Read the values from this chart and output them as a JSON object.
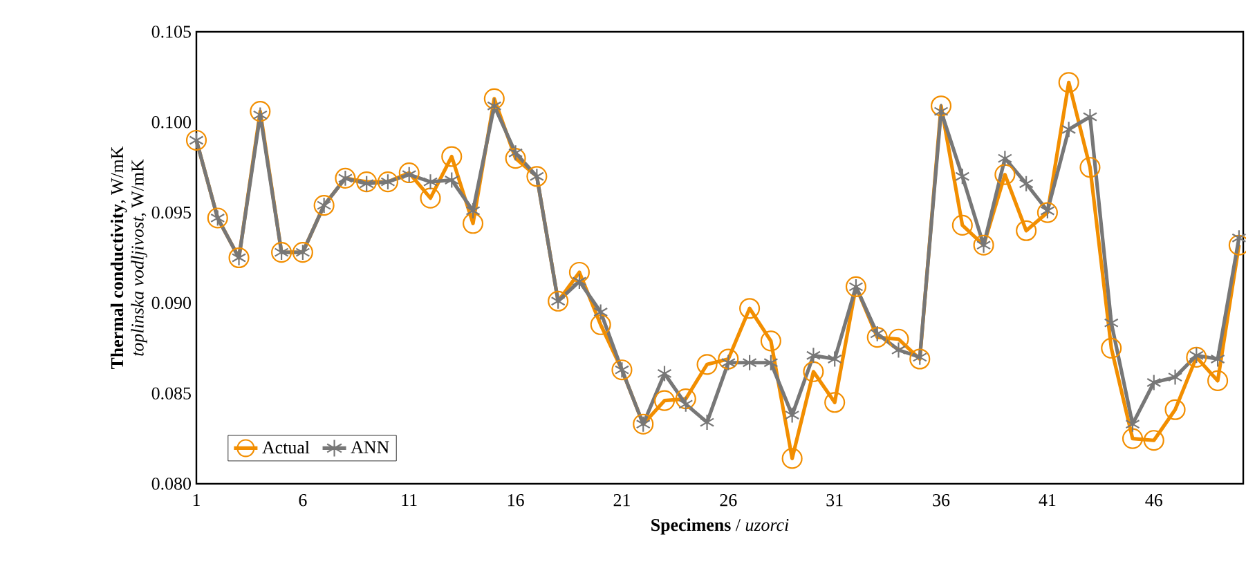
{
  "chart_data": {
    "type": "line",
    "xlabel": "**Specimens** / *uzorci*",
    "ylabel": [
      "**Thermal conductivity**, W/mK",
      "*toplinska vodljivost*, W/mK"
    ],
    "categories": [
      "1",
      null,
      null,
      null,
      null,
      "6",
      null,
      null,
      null,
      null,
      "11",
      null,
      null,
      null,
      null,
      "16",
      null,
      null,
      null,
      null,
      "21",
      null,
      null,
      null,
      null,
      "26",
      null,
      null,
      null,
      null,
      "31",
      null,
      null,
      null,
      null,
      "36",
      null,
      null,
      null,
      null,
      "41",
      null,
      null,
      null,
      null,
      "46",
      null,
      null,
      null,
      null
    ],
    "ylim": [
      0.08,
      0.105
    ],
    "yticks": [
      {
        "value": 0.08,
        "label": "0.080"
      },
      {
        "value": 0.085,
        "label": "0.085"
      },
      {
        "value": 0.09,
        "label": "0.090"
      },
      {
        "value": 0.095,
        "label": "0.095"
      },
      {
        "value": 0.1,
        "label": "0.100"
      },
      {
        "value": 0.105,
        "label": "0.105"
      }
    ],
    "grid": false,
    "legend": "bottom left",
    "line_style": "solid",
    "series": [
      {
        "name": "Actual",
        "color": "#f28e00",
        "marker": "circle",
        "values": [
          0.099,
          0.0947,
          0.0925,
          0.1006,
          0.0928,
          0.0928,
          0.0954,
          0.0969,
          0.0967,
          0.0967,
          0.0972,
          0.0958,
          0.0981,
          0.0944,
          0.1013,
          0.098,
          0.097,
          0.0901,
          0.0917,
          0.0888,
          0.0863,
          0.0833,
          0.0846,
          0.0847,
          0.0866,
          0.0869,
          0.0897,
          0.0879,
          0.0814,
          0.0862,
          0.0845,
          0.0909,
          0.0881,
          0.088,
          0.0869,
          0.1009,
          0.0943,
          0.0932,
          0.0971,
          0.094,
          0.095,
          0.1022,
          0.0975,
          0.0875,
          0.0825,
          0.0824,
          0.0841,
          0.087,
          0.0857,
          0.0932
        ]
      },
      {
        "name": "ANN",
        "color": "#777777",
        "marker": "cross",
        "values": [
          0.099,
          0.0947,
          0.0925,
          0.1004,
          0.0928,
          0.0928,
          0.0954,
          0.0969,
          0.0966,
          0.0967,
          0.0971,
          0.0967,
          0.0968,
          0.0951,
          0.1009,
          0.0983,
          0.097,
          0.0901,
          0.0912,
          0.0895,
          0.0863,
          0.0833,
          0.0861,
          0.0844,
          0.0834,
          0.0867,
          0.0867,
          0.0867,
          0.0838,
          0.0871,
          0.0869,
          0.0909,
          0.0883,
          0.0874,
          0.087,
          0.1006,
          0.097,
          0.0932,
          0.098,
          0.0966,
          0.0951,
          0.0996,
          0.1003,
          0.0889,
          0.0833,
          0.0856,
          0.0859,
          0.0871,
          0.0869,
          0.0936
        ]
      }
    ]
  }
}
